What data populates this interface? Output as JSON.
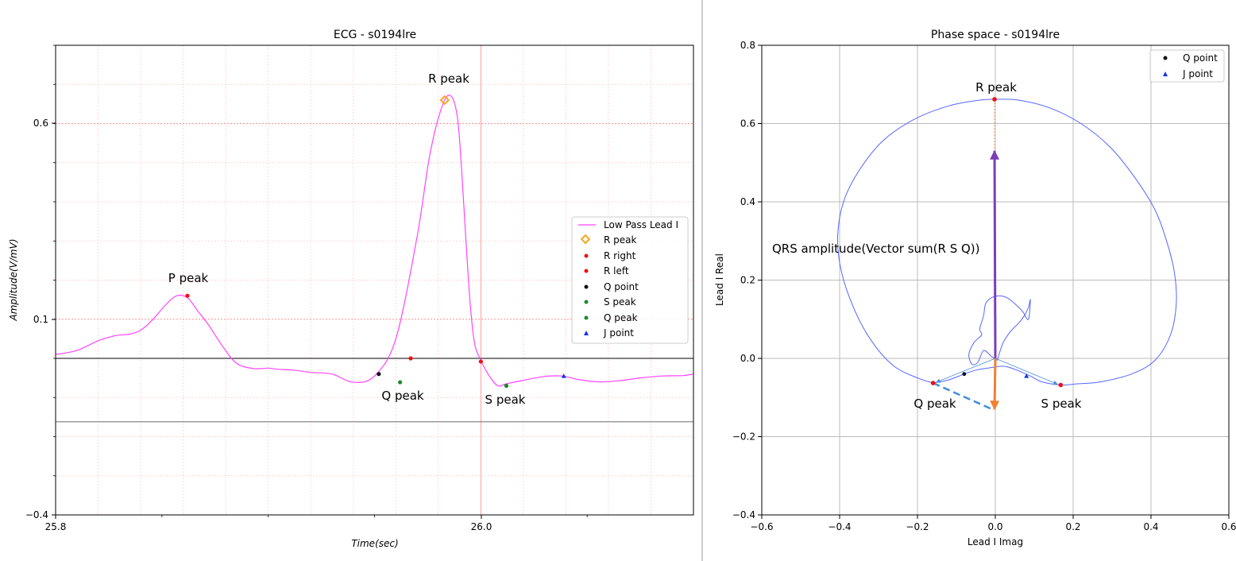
{
  "chart_data": [
    {
      "type": "line",
      "title": "ECG - s0194lre",
      "xlabel": "Time(sec)",
      "ylabel": "Amplitude(V/mV)",
      "xlim": [
        25.8,
        26.1
      ],
      "ylim": [
        -0.4,
        0.8
      ],
      "x_ticks": [
        "25.8",
        "26.0"
      ],
      "y_ticks": [
        "−0.4",
        "0.1",
        "0.6"
      ],
      "grid": true,
      "legend_position": "right",
      "baselines": [
        0.0,
        -0.162
      ],
      "series": [
        {
          "name": "Low Pass Lead I",
          "color": "#ff44ff",
          "x": [
            25.8,
            25.81,
            25.82,
            25.828,
            25.835,
            25.84,
            25.845,
            25.852,
            25.857,
            25.862,
            25.867,
            25.872,
            25.878,
            25.885,
            25.893,
            25.9,
            25.905,
            25.912,
            25.92,
            25.93,
            25.94,
            25.95,
            25.96,
            25.97,
            25.976,
            25.982,
            25.986,
            25.989,
            25.991,
            25.993,
            25.995,
            25.997,
            26.0,
            26.004,
            26.008,
            26.012,
            26.02,
            26.03,
            26.038,
            26.047,
            26.056,
            26.065,
            26.075,
            26.085,
            26.095,
            26.1
          ],
          "y": [
            0.01,
            0.02,
            0.045,
            0.058,
            0.062,
            0.072,
            0.095,
            0.138,
            0.16,
            0.155,
            0.12,
            0.085,
            0.035,
            -0.012,
            -0.026,
            -0.025,
            -0.028,
            -0.03,
            -0.036,
            -0.04,
            -0.061,
            -0.045,
            0.05,
            0.31,
            0.52,
            0.648,
            0.67,
            0.615,
            0.48,
            0.3,
            0.14,
            0.04,
            -0.005,
            -0.045,
            -0.07,
            -0.065,
            -0.056,
            -0.046,
            -0.045,
            -0.055,
            -0.06,
            -0.057,
            -0.05,
            -0.045,
            -0.044,
            -0.04
          ]
        }
      ],
      "markers": {
        "r_peak": {
          "x": 25.983,
          "y": 0.66
        },
        "p_peak": {
          "x": 25.862,
          "y": 0.16
        },
        "r_right": {
          "x": 26.0,
          "y": -0.008
        },
        "r_left": {
          "x": 25.967,
          "y": 0.0
        },
        "q_point": {
          "x": 25.952,
          "y": -0.04
        },
        "q_peak": {
          "x": 25.962,
          "y": -0.061
        },
        "s_peak": {
          "x": 26.012,
          "y": -0.07
        },
        "j_point": {
          "x": 26.039,
          "y": -0.045
        }
      },
      "legend": [
        "Low Pass Lead I",
        "R peak",
        "R right",
        "R left",
        "Q point",
        "S peak",
        "Q peak",
        "J point"
      ],
      "annotations": [
        "R peak",
        "P peak",
        "Q peak",
        "S peak"
      ]
    },
    {
      "type": "line",
      "title": "Phase space - s0194lre",
      "xlabel": "Lead I Imag",
      "ylabel": "Lead I Real",
      "xlim": [
        -0.6,
        0.6
      ],
      "ylim": [
        -0.4,
        0.8
      ],
      "x_ticks": [
        "−0.6",
        "−0.4",
        "−0.2",
        "0.0",
        "0.2",
        "0.4",
        "0.6"
      ],
      "y_ticks": [
        "−0.4",
        "−0.2",
        "0.0",
        "0.2",
        "0.4",
        "0.6",
        "0.8"
      ],
      "grid": true,
      "legend_position": "top-right",
      "loop_color": "#5566ff",
      "loop": {
        "x": [
          -0.16,
          -0.2,
          -0.26,
          -0.315,
          -0.36,
          -0.395,
          -0.405,
          -0.39,
          -0.35,
          -0.29,
          -0.21,
          -0.12,
          -0.04,
          0.0,
          0.06,
          0.14,
          0.22,
          0.295,
          0.36,
          0.41,
          0.44,
          0.46,
          0.465,
          0.45,
          0.41,
          0.35,
          0.27,
          0.21,
          0.17,
          0.12,
          0.09,
          0.05,
          0.02,
          -0.02,
          -0.05,
          -0.08,
          -0.12,
          -0.16
        ],
        "y": [
          -0.063,
          -0.05,
          -0.02,
          0.04,
          0.12,
          0.22,
          0.31,
          0.4,
          0.48,
          0.555,
          0.61,
          0.645,
          0.66,
          0.662,
          0.66,
          0.64,
          0.6,
          0.54,
          0.46,
          0.38,
          0.3,
          0.22,
          0.14,
          0.06,
          -0.005,
          -0.04,
          -0.06,
          -0.065,
          -0.068,
          -0.06,
          -0.045,
          -0.028,
          -0.02,
          -0.025,
          -0.03,
          -0.04,
          -0.055,
          -0.063
        ]
      },
      "inner_loop": {
        "x": [
          0.005,
          0.02,
          0.04,
          0.06,
          0.075,
          0.085,
          0.09,
          0.085,
          0.07,
          0.05,
          0.03,
          0.01,
          -0.01,
          -0.025,
          -0.03,
          -0.04,
          -0.035,
          -0.055,
          -0.068,
          -0.06,
          -0.045,
          -0.03,
          -0.01,
          0.005
        ],
        "y": [
          -0.005,
          0.04,
          0.07,
          0.09,
          0.11,
          0.13,
          0.15,
          0.1,
          0.12,
          0.14,
          0.155,
          0.16,
          0.155,
          0.14,
          0.11,
          0.075,
          0.06,
          0.04,
          0.01,
          -0.015,
          -0.01,
          0.02,
          0.005,
          -0.005
        ]
      },
      "points": {
        "r_peak": {
          "x": -0.002,
          "y": 0.662
        },
        "q_peak": {
          "x": -0.16,
          "y": -0.063
        },
        "s_peak": {
          "x": 0.168,
          "y": -0.068
        },
        "q_point": {
          "x": -0.08,
          "y": -0.04
        },
        "j_point": {
          "x": 0.08,
          "y": -0.045
        }
      },
      "vector_sum": {
        "x": -0.002,
        "y": 0.53
      },
      "vector_qs": {
        "x": -0.002,
        "y": -0.13
      },
      "legend": [
        "Q point",
        "J point"
      ],
      "annotations": [
        "R peak",
        "Q peak",
        "S peak",
        "QRS amplitude(Vector sum(R S Q))"
      ]
    }
  ]
}
